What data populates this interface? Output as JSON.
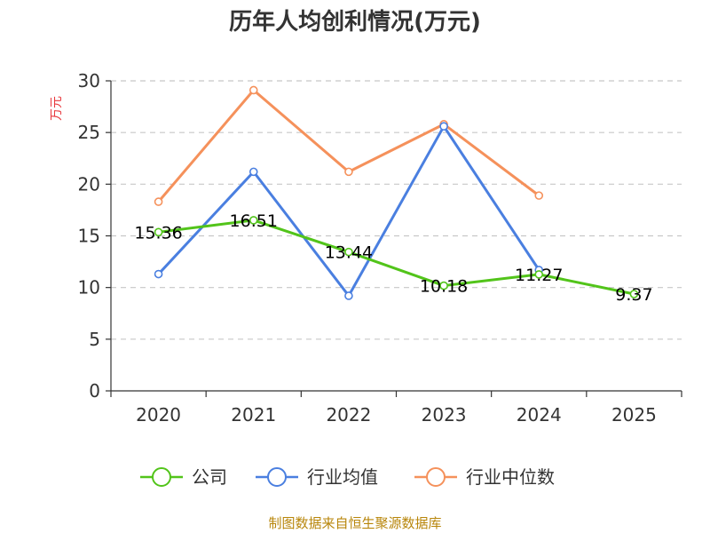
{
  "chart_data": {
    "type": "line",
    "title": "历年人均创利情况(万元)",
    "ylabel": "万元",
    "xlabel": "",
    "ylim": [
      0,
      30
    ],
    "yticks": [
      0,
      5,
      10,
      15,
      20,
      25,
      30
    ],
    "categories": [
      "2020",
      "2021",
      "2022",
      "2023",
      "2024",
      "2025"
    ],
    "grid": "horizontal dashed",
    "legend_position": "bottom",
    "series": [
      {
        "name": "公司",
        "color": "#52c41a",
        "values": [
          15.36,
          16.51,
          13.44,
          10.18,
          11.27,
          9.37
        ],
        "labels": [
          "15.36",
          "16.51",
          "13.44",
          "10.18",
          "11.27",
          "9.37"
        ]
      },
      {
        "name": "行业均值",
        "color": "#4a7fe0",
        "values": [
          11.3,
          21.2,
          9.2,
          25.6,
          11.7,
          null
        ]
      },
      {
        "name": "行业中位数",
        "color": "#f5915b",
        "values": [
          18.3,
          29.1,
          21.2,
          25.8,
          18.9,
          null
        ]
      }
    ]
  },
  "source_text": "制图数据来自恒生聚源数据库"
}
